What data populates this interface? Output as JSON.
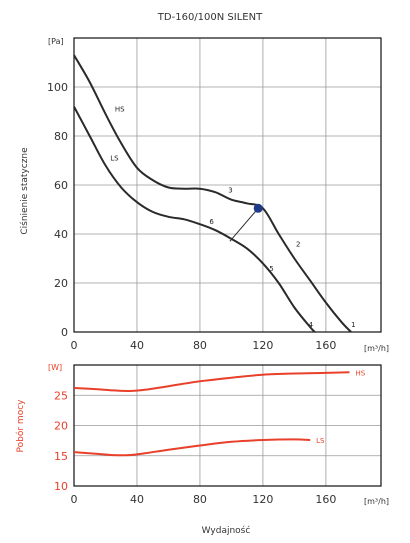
{
  "chart_data": [
    {
      "type": "line",
      "title": "TD-160/100N SILENT",
      "ylabel": "Ciśnienie statyczne",
      "yunit": "[Pa]",
      "xunit": "[m³/h]",
      "xlim": [
        0,
        195
      ],
      "ylim": [
        0,
        120
      ],
      "xticks": [
        0,
        40,
        80,
        120,
        160
      ],
      "yticks": [
        0,
        20,
        40,
        60,
        80,
        100
      ],
      "grid": true,
      "series": [
        {
          "name": "HS",
          "x": [
            0,
            10,
            20,
            30,
            40,
            50,
            60,
            70,
            80,
            90,
            100,
            110,
            120,
            130,
            140,
            150,
            160,
            170,
            176
          ],
          "y": [
            113,
            102,
            89,
            77,
            67,
            62,
            59,
            58.5,
            58.5,
            57,
            54,
            52.5,
            50.5,
            40,
            30,
            21,
            12,
            4,
            0
          ],
          "color": "#2a2a2a"
        },
        {
          "name": "LS",
          "x": [
            0,
            10,
            20,
            30,
            40,
            50,
            60,
            70,
            80,
            90,
            100,
            110,
            120,
            130,
            140,
            150,
            153
          ],
          "y": [
            92,
            80,
            68,
            59,
            53,
            49,
            47,
            46,
            44,
            41.5,
            38,
            34,
            28,
            20,
            10,
            2,
            0
          ]
        }
      ],
      "annotations": [
        {
          "text": "HS",
          "x": 26,
          "y": 90
        },
        {
          "text": "LS",
          "x": 23,
          "y": 70
        },
        {
          "text": "3",
          "x": 98,
          "y": 57
        },
        {
          "text": "6",
          "x": 86,
          "y": 44
        },
        {
          "text": "2",
          "x": 141,
          "y": 35
        },
        {
          "text": "5",
          "x": 124,
          "y": 25
        },
        {
          "text": "4",
          "x": 149,
          "y": 2
        },
        {
          "text": "1",
          "x": 176,
          "y": 2
        }
      ],
      "operating_point": {
        "x": 117,
        "y": 50.5,
        "color": "#1f3a8a"
      },
      "connector": {
        "from": [
          117,
          50.5
        ],
        "to": [
          99,
          37
        ]
      }
    },
    {
      "type": "line",
      "ylabel": "Pobór mocy",
      "yunit": "[W]",
      "xunit": "[m³/h]",
      "xlabel": "Wydajność",
      "xlim": [
        0,
        195
      ],
      "ylim": [
        10,
        30
      ],
      "xticks": [
        0,
        40,
        80,
        120,
        160
      ],
      "yticks": [
        10,
        15,
        20,
        25
      ],
      "grid": true,
      "series": [
        {
          "name": "HS",
          "x": [
            0,
            15,
            25,
            35,
            45,
            60,
            80,
            100,
            120,
            140,
            160,
            175
          ],
          "y": [
            26.2,
            26.0,
            25.8,
            25.7,
            25.9,
            26.5,
            27.3,
            27.9,
            28.4,
            28.6,
            28.7,
            28.8
          ],
          "color": "#e8402a"
        },
        {
          "name": "LS",
          "x": [
            0,
            15,
            25,
            35,
            45,
            60,
            80,
            100,
            120,
            140,
            150
          ],
          "y": [
            15.6,
            15.3,
            15.1,
            15.1,
            15.4,
            16.0,
            16.7,
            17.3,
            17.6,
            17.7,
            17.6
          ],
          "color": "#e8402a"
        }
      ]
    }
  ]
}
